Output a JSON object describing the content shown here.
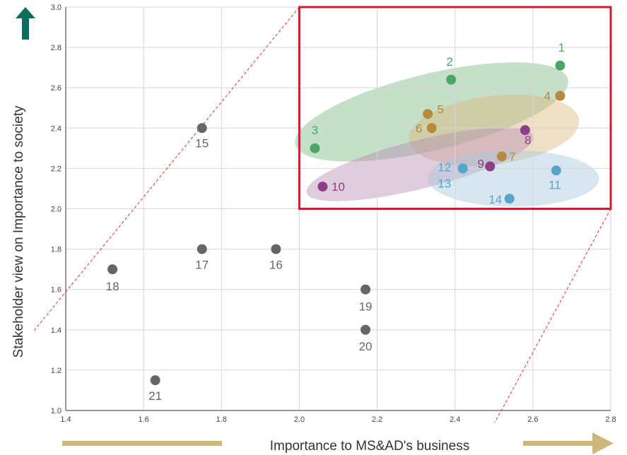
{
  "chart_data": {
    "type": "scatter",
    "title": "",
    "xlabel": "Importance to MS&AD's business",
    "ylabel": "Stakeholder view on Importance to society",
    "xlim": [
      1.4,
      2.8
    ],
    "ylim": [
      1.0,
      3.0
    ],
    "x_ticks": [
      "1.4",
      "1.6",
      "1.8",
      "2.0",
      "2.2",
      "2.4",
      "2.6",
      "2.8"
    ],
    "y_ticks": [
      "1.0",
      "1.2",
      "1.4",
      "1.6",
      "1.8",
      "2.0",
      "2.2",
      "2.4",
      "2.6",
      "2.8",
      "3.0"
    ],
    "grid": true,
    "highlight_region": {
      "x": [
        2.0,
        2.8
      ],
      "y": [
        2.0,
        3.0
      ],
      "color": "#c8202f"
    },
    "series": [
      {
        "color": "#4aa666",
        "points": [
          {
            "label": "1",
            "x": 2.67,
            "y": 2.71
          },
          {
            "label": "2",
            "x": 2.39,
            "y": 2.64
          },
          {
            "label": "3",
            "x": 2.04,
            "y": 2.3
          }
        ]
      },
      {
        "color": "#b48a3c",
        "points": [
          {
            "label": "4",
            "x": 2.67,
            "y": 2.56
          },
          {
            "label": "5",
            "x": 2.33,
            "y": 2.47
          },
          {
            "label": "6",
            "x": 2.34,
            "y": 2.4
          },
          {
            "label": "7",
            "x": 2.52,
            "y": 2.26
          }
        ]
      },
      {
        "color": "#8c3f86",
        "points": [
          {
            "label": "8",
            "x": 2.58,
            "y": 2.39
          },
          {
            "label": "9",
            "x": 2.49,
            "y": 2.21
          },
          {
            "label": "10",
            "x": 2.06,
            "y": 2.11
          }
        ]
      },
      {
        "color": "#58a4c6",
        "points": [
          {
            "label": "11",
            "x": 2.66,
            "y": 2.19
          },
          {
            "label": "12",
            "x": 2.42,
            "y": 2.2
          },
          {
            "label": "13",
            "x": 2.42,
            "y": 2.2
          },
          {
            "label": "14",
            "x": 2.54,
            "y": 2.05
          }
        ]
      },
      {
        "color": "#666666",
        "points": [
          {
            "label": "15",
            "x": 1.75,
            "y": 2.4
          },
          {
            "label": "16",
            "x": 1.94,
            "y": 1.8
          },
          {
            "label": "17",
            "x": 1.75,
            "y": 1.8
          },
          {
            "label": "18",
            "x": 1.52,
            "y": 1.7
          },
          {
            "label": "19",
            "x": 2.17,
            "y": 1.6
          },
          {
            "label": "20",
            "x": 2.17,
            "y": 1.4
          },
          {
            "label": "21",
            "x": 1.63,
            "y": 1.15
          }
        ]
      }
    ],
    "clusters": [
      {
        "color": "#7fb887",
        "cx": 2.34,
        "cy": 2.48,
        "rx": 0.36,
        "ry": 0.19,
        "angle": 0.24
      },
      {
        "color": "#d9b77f",
        "cx": 2.5,
        "cy": 2.39,
        "rx": 0.22,
        "ry": 0.17,
        "angle": 0.12
      },
      {
        "color": "#b88fb3",
        "cx": 2.31,
        "cy": 2.22,
        "rx": 0.3,
        "ry": 0.12,
        "angle": 0.25
      },
      {
        "color": "#a8c8dc",
        "cx": 2.55,
        "cy": 2.15,
        "rx": 0.22,
        "ry": 0.14,
        "angle": 0.0
      }
    ],
    "arrows": {
      "up_color": "#0f6f5e",
      "right_color": "#cdb77a"
    }
  }
}
